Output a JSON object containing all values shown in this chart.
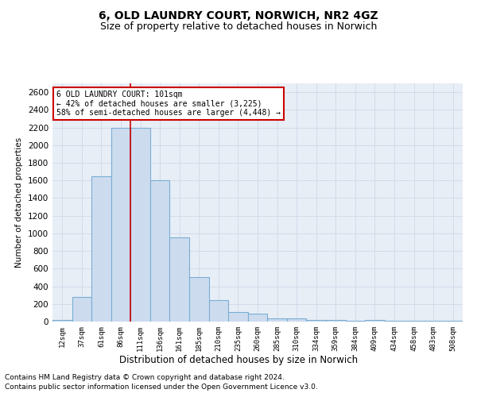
{
  "title": "6, OLD LAUNDRY COURT, NORWICH, NR2 4GZ",
  "subtitle": "Size of property relative to detached houses in Norwich",
  "xlabel": "Distribution of detached houses by size in Norwich",
  "ylabel": "Number of detached properties",
  "categories": [
    "12sqm",
    "37sqm",
    "61sqm",
    "86sqm",
    "111sqm",
    "136sqm",
    "161sqm",
    "185sqm",
    "210sqm",
    "235sqm",
    "260sqm",
    "285sqm",
    "310sqm",
    "334sqm",
    "359sqm",
    "384sqm",
    "409sqm",
    "434sqm",
    "458sqm",
    "483sqm",
    "508sqm"
  ],
  "values": [
    20,
    280,
    1650,
    2200,
    2200,
    1600,
    950,
    500,
    240,
    110,
    90,
    35,
    35,
    20,
    15,
    10,
    15,
    10,
    10,
    5,
    5
  ],
  "bar_color": "#ccdcee",
  "bar_edge_color": "#7aadd4",
  "bar_linewidth": 0.8,
  "red_line_x": 3.5,
  "red_line_color": "#cc0000",
  "ylim": [
    0,
    2700
  ],
  "yticks": [
    0,
    200,
    400,
    600,
    800,
    1000,
    1200,
    1400,
    1600,
    1800,
    2000,
    2200,
    2400,
    2600
  ],
  "annotation_title": "6 OLD LAUNDRY COURT: 101sqm",
  "annotation_line1": "← 42% of detached houses are smaller (3,225)",
  "annotation_line2": "58% of semi-detached houses are larger (4,448) →",
  "annotation_box_color": "#ffffff",
  "annotation_box_edge": "#cc0000",
  "grid_color": "#d0d8e8",
  "background_color": "#e8eef6",
  "footer1": "Contains HM Land Registry data © Crown copyright and database right 2024.",
  "footer2": "Contains public sector information licensed under the Open Government Licence v3.0.",
  "title_fontsize": 10,
  "subtitle_fontsize": 9,
  "footer_fontsize": 6.5
}
